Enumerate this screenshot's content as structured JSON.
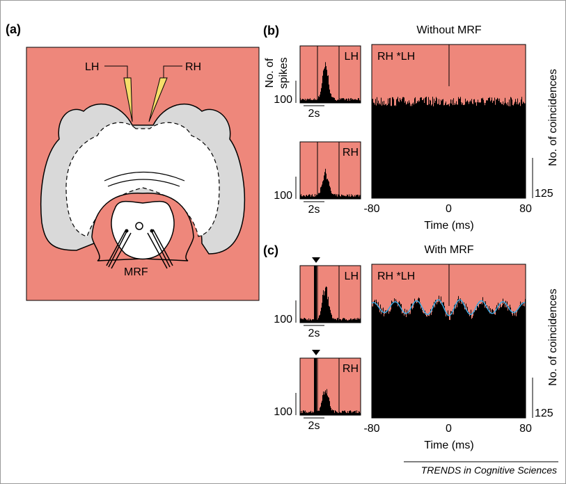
{
  "panel_a": {
    "label": "(a)",
    "left_electrode": "LH",
    "right_electrode": "RH",
    "stimulation_site": "MRF"
  },
  "panel_b": {
    "label": "(b)",
    "title": "Without MRF",
    "y_label_small": "No. of spikes",
    "small_scale": "100",
    "time_scale": "2s",
    "lh_label": "LH",
    "rh_label": "RH",
    "correlogram_label": "RH *LH",
    "y_label_large": "No. of coincidences",
    "large_scale": "125",
    "x_ticks": [
      "-80",
      "0",
      "80"
    ],
    "x_label": "Time (ms)"
  },
  "panel_c": {
    "label": "(c)",
    "title": "With MRF",
    "small_scale": "100",
    "time_scale": "2s",
    "lh_label": "LH",
    "rh_label": "RH",
    "correlogram_label": "RH *LH",
    "y_label_large": "No. of coincidences",
    "large_scale": "125",
    "x_ticks": [
      "-80",
      "0",
      "80"
    ],
    "x_label": "Time (ms)"
  },
  "footer": "TRENDS in Cognitive Sciences"
}
